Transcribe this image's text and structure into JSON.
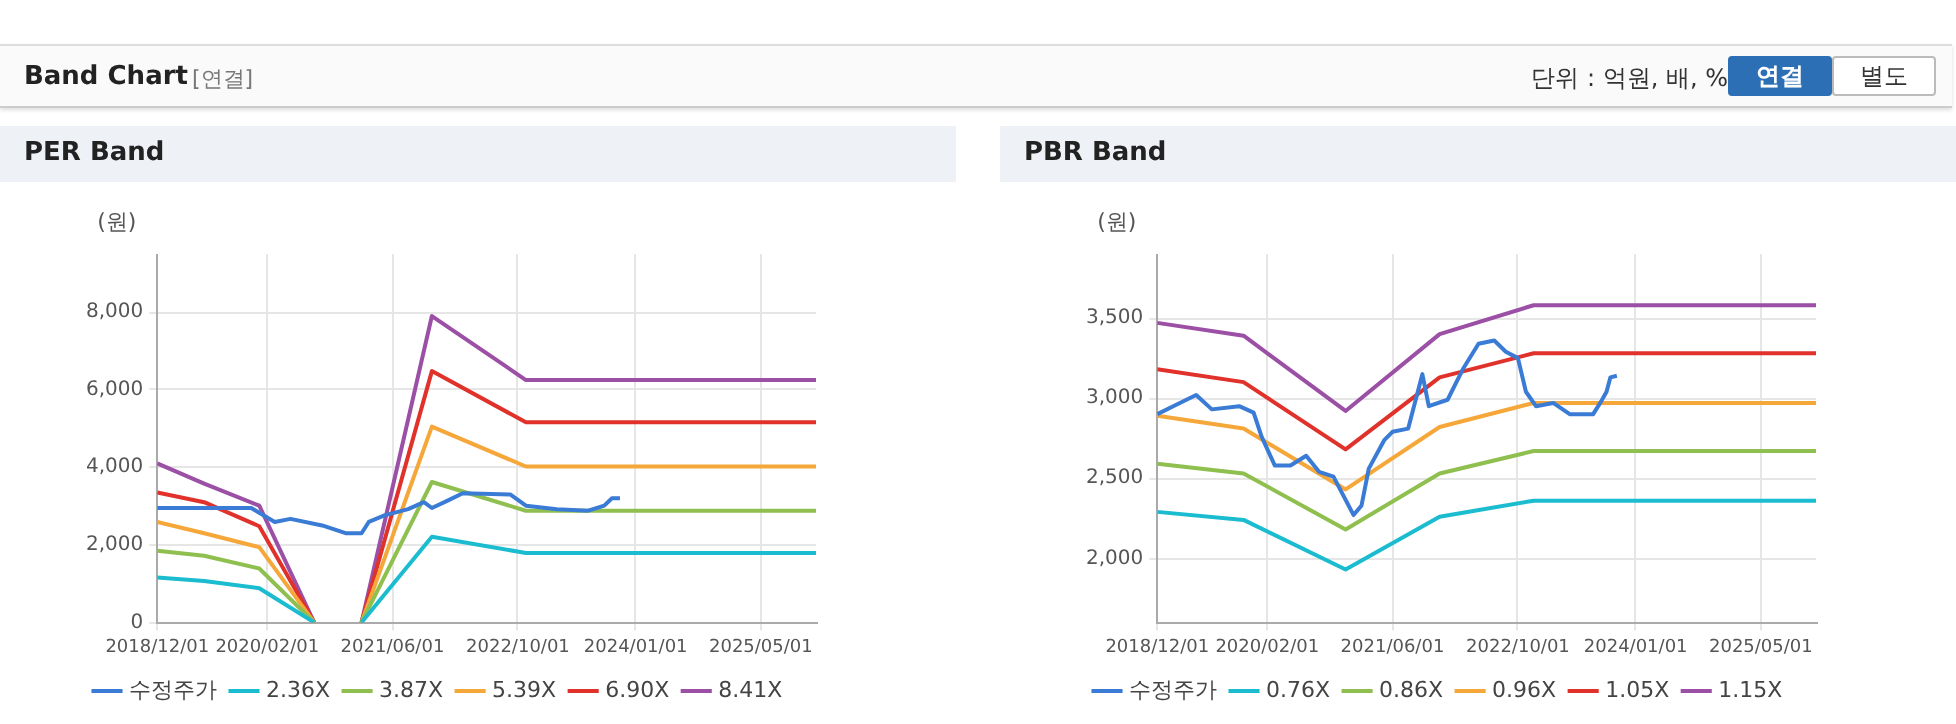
{
  "chart_data": [
    {
      "type": "other",
      "title": "Band Chart",
      "annotations": [
        "[연결]",
        "단위 : 억원, 배, %",
        "연결",
        "별도"
      ]
    },
    {
      "type": "line",
      "title": "PER Band",
      "ylabel": "(원)",
      "legend": "bottom",
      "grid": true,
      "marker": "none",
      "xlim": [
        "2018-12-01",
        "2025-12-01"
      ],
      "xticks": [
        {
          "value": "2018-12-01",
          "label": "2018/12/01"
        },
        {
          "value": "2020-02-01",
          "label": "2020/02/01"
        },
        {
          "value": "2021-06-01",
          "label": "2021/06/01"
        },
        {
          "value": "2022-10-01",
          "label": "2022/10/01"
        },
        {
          "value": "2024-01-01",
          "label": "2024/01/01"
        },
        {
          "value": "2025-05-01",
          "label": "2025/05/01"
        }
      ],
      "ylim": [
        0,
        9500
      ],
      "yticks": [
        0,
        {
          "value": 2000,
          "label": "2,000"
        },
        {
          "value": 4000,
          "label": "4,000"
        },
        {
          "value": 6000,
          "label": "6,000"
        },
        {
          "value": 8000,
          "label": "8,000"
        }
      ],
      "series": [
        {
          "name": "수정주가",
          "color": "#3a7bd5",
          "x": [
            "2018-12-01",
            "2019-12-01",
            "2020-03-01",
            "2020-05-01",
            "2020-09-01",
            "2020-12-01",
            "2021-02-01",
            "2021-03-01",
            "2021-05-01",
            "2021-08-01",
            "2021-10-01",
            "2021-11-01",
            "2022-01-01",
            "2022-03-01",
            "2022-09-01",
            "2022-11-01",
            "2023-03-01",
            "2023-07-01",
            "2023-09-01",
            "2023-10-01",
            "2023-11-01"
          ],
          "values": [
            2950,
            2950,
            2590,
            2670,
            2500,
            2300,
            2300,
            2590,
            2760,
            2920,
            3100,
            2950,
            3140,
            3330,
            3300,
            3010,
            2920,
            2880,
            3010,
            3200,
            3200
          ]
        },
        {
          "name": "2.36X",
          "color": "#1bbcd0",
          "x": [
            "2018-12-01",
            "2019-06-01",
            "2020-01-01",
            "2020-08-01",
            "2020-11-01",
            "2021-02-01",
            "2021-11-01",
            "2022-11-01",
            "2025-12-01"
          ],
          "values": [
            1160,
            1070,
            880,
            0,
            null,
            0,
            2210,
            1790,
            1790
          ]
        },
        {
          "name": "3.87X",
          "color": "#8fbf4f",
          "x": [
            "2018-12-01",
            "2019-06-01",
            "2020-01-01",
            "2020-08-01",
            "2020-11-01",
            "2021-02-01",
            "2021-11-01",
            "2022-11-01",
            "2025-12-01"
          ],
          "values": [
            1850,
            1720,
            1390,
            0,
            null,
            0,
            3620,
            2880,
            2880
          ]
        },
        {
          "name": "5.39X",
          "color": "#f5a73a",
          "x": [
            "2018-12-01",
            "2019-06-01",
            "2020-01-01",
            "2020-08-01",
            "2020-11-01",
            "2021-02-01",
            "2021-11-01",
            "2022-11-01",
            "2025-12-01"
          ],
          "values": [
            2590,
            2300,
            1940,
            0,
            null,
            0,
            5050,
            4020,
            4020
          ]
        },
        {
          "name": "6.90X",
          "color": "#e0312b",
          "x": [
            "2018-12-01",
            "2019-06-01",
            "2020-01-01",
            "2020-08-01",
            "2020-11-01",
            "2021-02-01",
            "2021-11-01",
            "2022-11-01",
            "2025-12-01"
          ],
          "values": [
            3350,
            3100,
            2480,
            0,
            null,
            0,
            6480,
            5160,
            5160
          ]
        },
        {
          "name": "8.41X",
          "color": "#9b4fa5",
          "x": [
            "2018-12-01",
            "2019-06-01",
            "2020-01-01",
            "2020-08-01",
            "2020-11-01",
            "2021-02-01",
            "2021-11-01",
            "2022-11-01",
            "2025-12-01"
          ],
          "values": [
            4100,
            3580,
            3010,
            0,
            null,
            0,
            7900,
            6250,
            6250
          ]
        }
      ]
    },
    {
      "type": "line",
      "title": "PBR Band",
      "ylabel": "(원)",
      "legend": "bottom",
      "grid": true,
      "marker": "none",
      "xlim": [
        "2018-12-01",
        "2025-12-01"
      ],
      "xticks": [
        {
          "value": "2018-12-01",
          "label": "2018/12/01"
        },
        {
          "value": "2020-02-01",
          "label": "2020/02/01"
        },
        {
          "value": "2021-06-01",
          "label": "2021/06/01"
        },
        {
          "value": "2022-10-01",
          "label": "2022/10/01"
        },
        {
          "value": "2024-01-01",
          "label": "2024/01/01"
        },
        {
          "value": "2025-05-01",
          "label": "2025/05/01"
        }
      ],
      "ylim": [
        1600,
        3900
      ],
      "yticks": [
        {
          "value": 2000,
          "label": "2,000"
        },
        {
          "value": 2500,
          "label": "2,500"
        },
        {
          "value": 3000,
          "label": "3,000"
        },
        {
          "value": 3500,
          "label": "3,500"
        }
      ],
      "series": [
        {
          "name": "수정주가",
          "color": "#3a7bd5",
          "x": [
            "2018-12-01",
            "2019-02-01",
            "2019-05-01",
            "2019-07-01",
            "2019-10-15",
            "2019-12-10",
            "2020-01-10",
            "2020-03-01",
            "2020-05-01",
            "2020-07-01",
            "2020-08-20",
            "2020-10-15",
            "2021-01-01",
            "2021-02-01",
            "2021-03-01",
            "2021-05-01",
            "2021-06-01",
            "2021-08-01",
            "2021-09-25",
            "2021-10-20",
            "2022-01-01",
            "2022-03-01",
            "2022-05-01",
            "2022-07-01",
            "2022-08-15",
            "2022-10-01",
            "2022-11-01",
            "2022-12-10",
            "2023-02-15",
            "2023-04-20",
            "2023-07-20",
            "2023-08-20",
            "2023-09-10",
            "2023-09-25",
            "2023-10-20"
          ],
          "values": [
            2900,
            2950,
            3020,
            2930,
            2950,
            2910,
            2760,
            2580,
            2580,
            2640,
            2540,
            2510,
            2270,
            2330,
            2560,
            2740,
            2790,
            2810,
            3150,
            2950,
            2990,
            3180,
            3340,
            3360,
            3290,
            3250,
            3040,
            2950,
            2970,
            2900,
            2900,
            2980,
            3040,
            3130,
            3140
          ]
        },
        {
          "name": "0.76X",
          "color": "#1bbcd0",
          "x": [
            "2018-12-01",
            "2019-11-01",
            "2020-12-01",
            "2021-12-01",
            "2022-12-01",
            "2025-12-01"
          ],
          "values": [
            2290,
            2240,
            1930,
            2260,
            2360,
            2360
          ]
        },
        {
          "name": "0.86X",
          "color": "#8fbf4f",
          "x": [
            "2018-12-01",
            "2019-11-01",
            "2020-12-01",
            "2021-12-01",
            "2022-12-01",
            "2025-12-01"
          ],
          "values": [
            2590,
            2530,
            2180,
            2530,
            2670,
            2670
          ]
        },
        {
          "name": "0.96X",
          "color": "#f5a73a",
          "x": [
            "2018-12-01",
            "2019-11-01",
            "2020-12-01",
            "2021-12-01",
            "2022-12-01",
            "2025-12-01"
          ],
          "values": [
            2890,
            2810,
            2430,
            2820,
            2970,
            2970
          ]
        },
        {
          "name": "1.05X",
          "color": "#e0312b",
          "x": [
            "2018-12-01",
            "2019-11-01",
            "2020-12-01",
            "2021-12-01",
            "2022-12-01",
            "2025-12-01"
          ],
          "values": [
            3180,
            3100,
            2680,
            3130,
            3280,
            3280
          ]
        },
        {
          "name": "1.15X",
          "color": "#9b4fa5",
          "x": [
            "2018-12-01",
            "2019-11-01",
            "2020-12-01",
            "2021-12-01",
            "2022-12-01",
            "2025-12-01"
          ],
          "values": [
            3470,
            3390,
            2920,
            3400,
            3580,
            3580
          ]
        }
      ]
    }
  ]
}
